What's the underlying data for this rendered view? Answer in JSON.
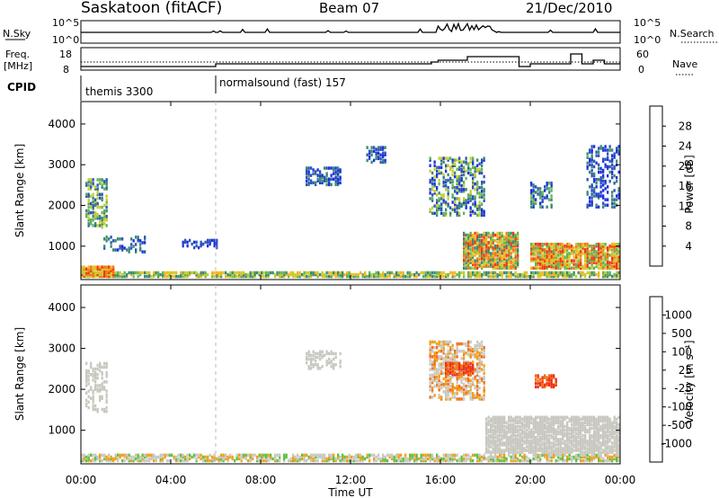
{
  "header": {
    "station": "Saskatoon (fitACF)",
    "beam": "Beam 07",
    "date": "21/Dec/2010"
  },
  "strips": {
    "nsky_label": "N.Sky",
    "nsky_ticks": [
      "10^5",
      "10^0"
    ],
    "nsearch_label": "N.Search",
    "nsearch_ticks": [
      "10^5",
      "10^0"
    ],
    "freq_label_1": "Freq.",
    "freq_label_2": "[MHz]",
    "freq_ticks": [
      "18",
      "8"
    ],
    "nave_label": "Nave",
    "nave_ticks": [
      "60",
      "0"
    ],
    "cpid_label": "CPID",
    "cpid_segments": [
      {
        "label": "themis 3300",
        "start_hour": 0
      },
      {
        "label": "normalsound (fast) 157",
        "start_hour": 6
      }
    ]
  },
  "chart_data": [
    {
      "type": "heatmap",
      "title": "",
      "xlabel": "Time UT",
      "ylabel": "Slant Range [km]",
      "xticks": [
        "00:00",
        "04:00",
        "08:00",
        "12:00",
        "16:00",
        "20:00",
        "00:00"
      ],
      "xlim_hours": [
        0,
        24
      ],
      "yticks": [
        "1000",
        "2000",
        "3000",
        "4000"
      ],
      "ylim": [
        180,
        4550
      ],
      "colorbar": {
        "label": "Power [dB]",
        "ticks": [
          "4",
          "8",
          "12",
          "16",
          "20",
          "24",
          "28"
        ],
        "colors": [
          "#1a30e0",
          "#2e55b8",
          "#3b8a70",
          "#62b357",
          "#c4cd32",
          "#f4b51c",
          "#f07a17",
          "#ee3a16"
        ]
      }
    },
    {
      "type": "heatmap",
      "title": "",
      "xlabel": "Time UT",
      "ylabel": "Slant Range [km]",
      "xticks": [
        "00:00",
        "04:00",
        "08:00",
        "12:00",
        "16:00",
        "20:00",
        "00:00"
      ],
      "xlim_hours": [
        0,
        24
      ],
      "yticks": [
        "1000",
        "2000",
        "3000",
        "4000"
      ],
      "ylim": [
        180,
        4550
      ],
      "colorbar": {
        "label": "Velocity [m s⁻¹]",
        "ticks": [
          "1000",
          "500",
          "100",
          "25",
          "-25",
          "-100",
          "-500",
          "-1000"
        ],
        "colors": [
          "#2a3aa8",
          "#3a72b0",
          "#3f8d62",
          "#5ec240",
          "#c8c8c0",
          "#c8c8c0",
          "#f0a01c",
          "#f07018",
          "#ee3015"
        ]
      }
    }
  ],
  "xaxis_title": "Time UT"
}
